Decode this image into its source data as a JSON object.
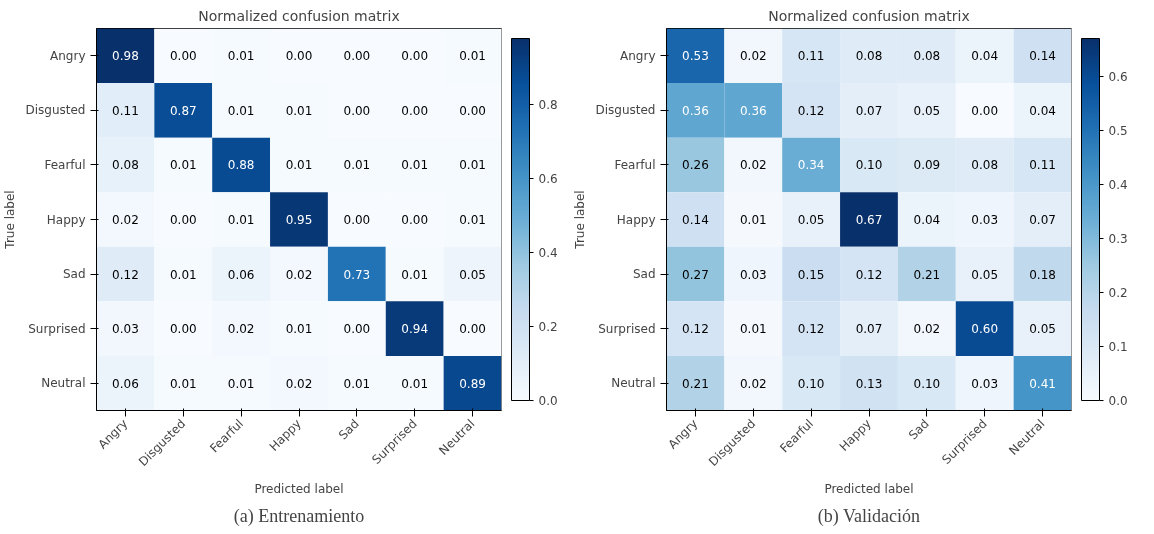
{
  "chart_data": [
    {
      "type": "heatmap",
      "title": "Normalized confusion matrix",
      "xlabel": "Predicted label",
      "ylabel": "True label",
      "categories": [
        "Angry",
        "Disgusted",
        "Fearful",
        "Happy",
        "Sad",
        "Surprised",
        "Neutral"
      ],
      "y_categories": [
        "Angry",
        "Disgusted",
        "Fearful",
        "Happy",
        "Sad",
        "Surprised",
        "Neutral"
      ],
      "cells": [
        [
          0.98,
          0.0,
          0.01,
          0.0,
          0.0,
          0.0,
          0.01
        ],
        [
          0.11,
          0.87,
          0.01,
          0.01,
          0.0,
          0.0,
          0.0
        ],
        [
          0.08,
          0.01,
          0.88,
          0.01,
          0.01,
          0.01,
          0.01
        ],
        [
          0.02,
          0.0,
          0.01,
          0.95,
          0.0,
          0.0,
          0.01
        ],
        [
          0.12,
          0.01,
          0.06,
          0.02,
          0.73,
          0.01,
          0.05
        ],
        [
          0.03,
          0.0,
          0.02,
          0.01,
          0.0,
          0.94,
          0.0
        ],
        [
          0.06,
          0.01,
          0.01,
          0.02,
          0.01,
          0.01,
          0.89
        ]
      ],
      "cell_labels": [
        [
          "0.98",
          "0.00",
          "0.01",
          "0.00",
          "0.00",
          "0.00",
          "0.01"
        ],
        [
          "0.11",
          "0.87",
          "0.01",
          "0.01",
          "0.00",
          "0.00",
          "0.00"
        ],
        [
          "0.08",
          "0.01",
          "0.88",
          "0.01",
          "0.01",
          "0.01",
          "0.01"
        ],
        [
          "0.02",
          "0.00",
          "0.01",
          "0.95",
          "0.00",
          "0.00",
          "0.01"
        ],
        [
          "0.12",
          "0.01",
          "0.06",
          "0.02",
          "0.73",
          "0.01",
          "0.05"
        ],
        [
          "0.03",
          "0.00",
          "0.02",
          "0.01",
          "0.00",
          "0.94",
          "0.00"
        ],
        [
          "0.06",
          "0.01",
          "0.01",
          "0.02",
          "0.01",
          "0.01",
          "0.89"
        ]
      ],
      "clim": [
        0,
        0.98
      ],
      "cticks": [
        {
          "value": 0,
          "label": "0.0"
        },
        0.2,
        0.4,
        0.6,
        0.8
      ],
      "annotations": [
        "(a) Entrenamiento"
      ]
    },
    {
      "type": "heatmap",
      "title": "Normalized confusion matrix",
      "xlabel": "Predicted label",
      "ylabel": "True label",
      "categories": [
        "Angry",
        "Disgusted",
        "Fearful",
        "Happy",
        "Sad",
        "Surprised",
        "Neutral"
      ],
      "y_categories": [
        "Angry",
        "Disgusted",
        "Fearful",
        "Happy",
        "Sad",
        "Surprised",
        "Neutral"
      ],
      "cells": [
        [
          0.53,
          0.02,
          0.11,
          0.08,
          0.08,
          0.04,
          0.14
        ],
        [
          0.36,
          0.36,
          0.12,
          0.07,
          0.05,
          0.0,
          0.04
        ],
        [
          0.26,
          0.02,
          0.34,
          0.1,
          0.09,
          0.08,
          0.11
        ],
        [
          0.14,
          0.01,
          0.05,
          0.67,
          0.04,
          0.03,
          0.07
        ],
        [
          0.27,
          0.03,
          0.15,
          0.12,
          0.21,
          0.05,
          0.18
        ],
        [
          0.12,
          0.01,
          0.12,
          0.07,
          0.02,
          0.6,
          0.05
        ],
        [
          0.21,
          0.02,
          0.1,
          0.13,
          0.1,
          0.03,
          0.41
        ]
      ],
      "cell_labels": [
        [
          "0.53",
          "0.02",
          "0.11",
          "0.08",
          "0.08",
          "0.04",
          "0.14"
        ],
        [
          "0.36",
          "0.36",
          "0.12",
          "0.07",
          "0.05",
          "0.00",
          "0.04"
        ],
        [
          "0.26",
          "0.02",
          "0.34",
          "0.10",
          "0.09",
          "0.08",
          "0.11"
        ],
        [
          "0.14",
          "0.01",
          "0.05",
          "0.67",
          "0.04",
          "0.03",
          "0.07"
        ],
        [
          "0.27",
          "0.03",
          "0.15",
          "0.12",
          "0.21",
          "0.05",
          "0.18"
        ],
        [
          "0.12",
          "0.01",
          "0.12",
          "0.07",
          "0.02",
          "0.60",
          "0.05"
        ],
        [
          "0.21",
          "0.02",
          "0.10",
          "0.13",
          "0.10",
          "0.03",
          "0.41"
        ]
      ],
      "clim": [
        0,
        0.67
      ],
      "cticks": [
        {
          "value": 0,
          "label": "0.0"
        },
        0.1,
        0.2,
        0.3,
        0.4,
        0.5,
        0.6
      ],
      "annotations": [
        "(b) Validación"
      ]
    }
  ]
}
